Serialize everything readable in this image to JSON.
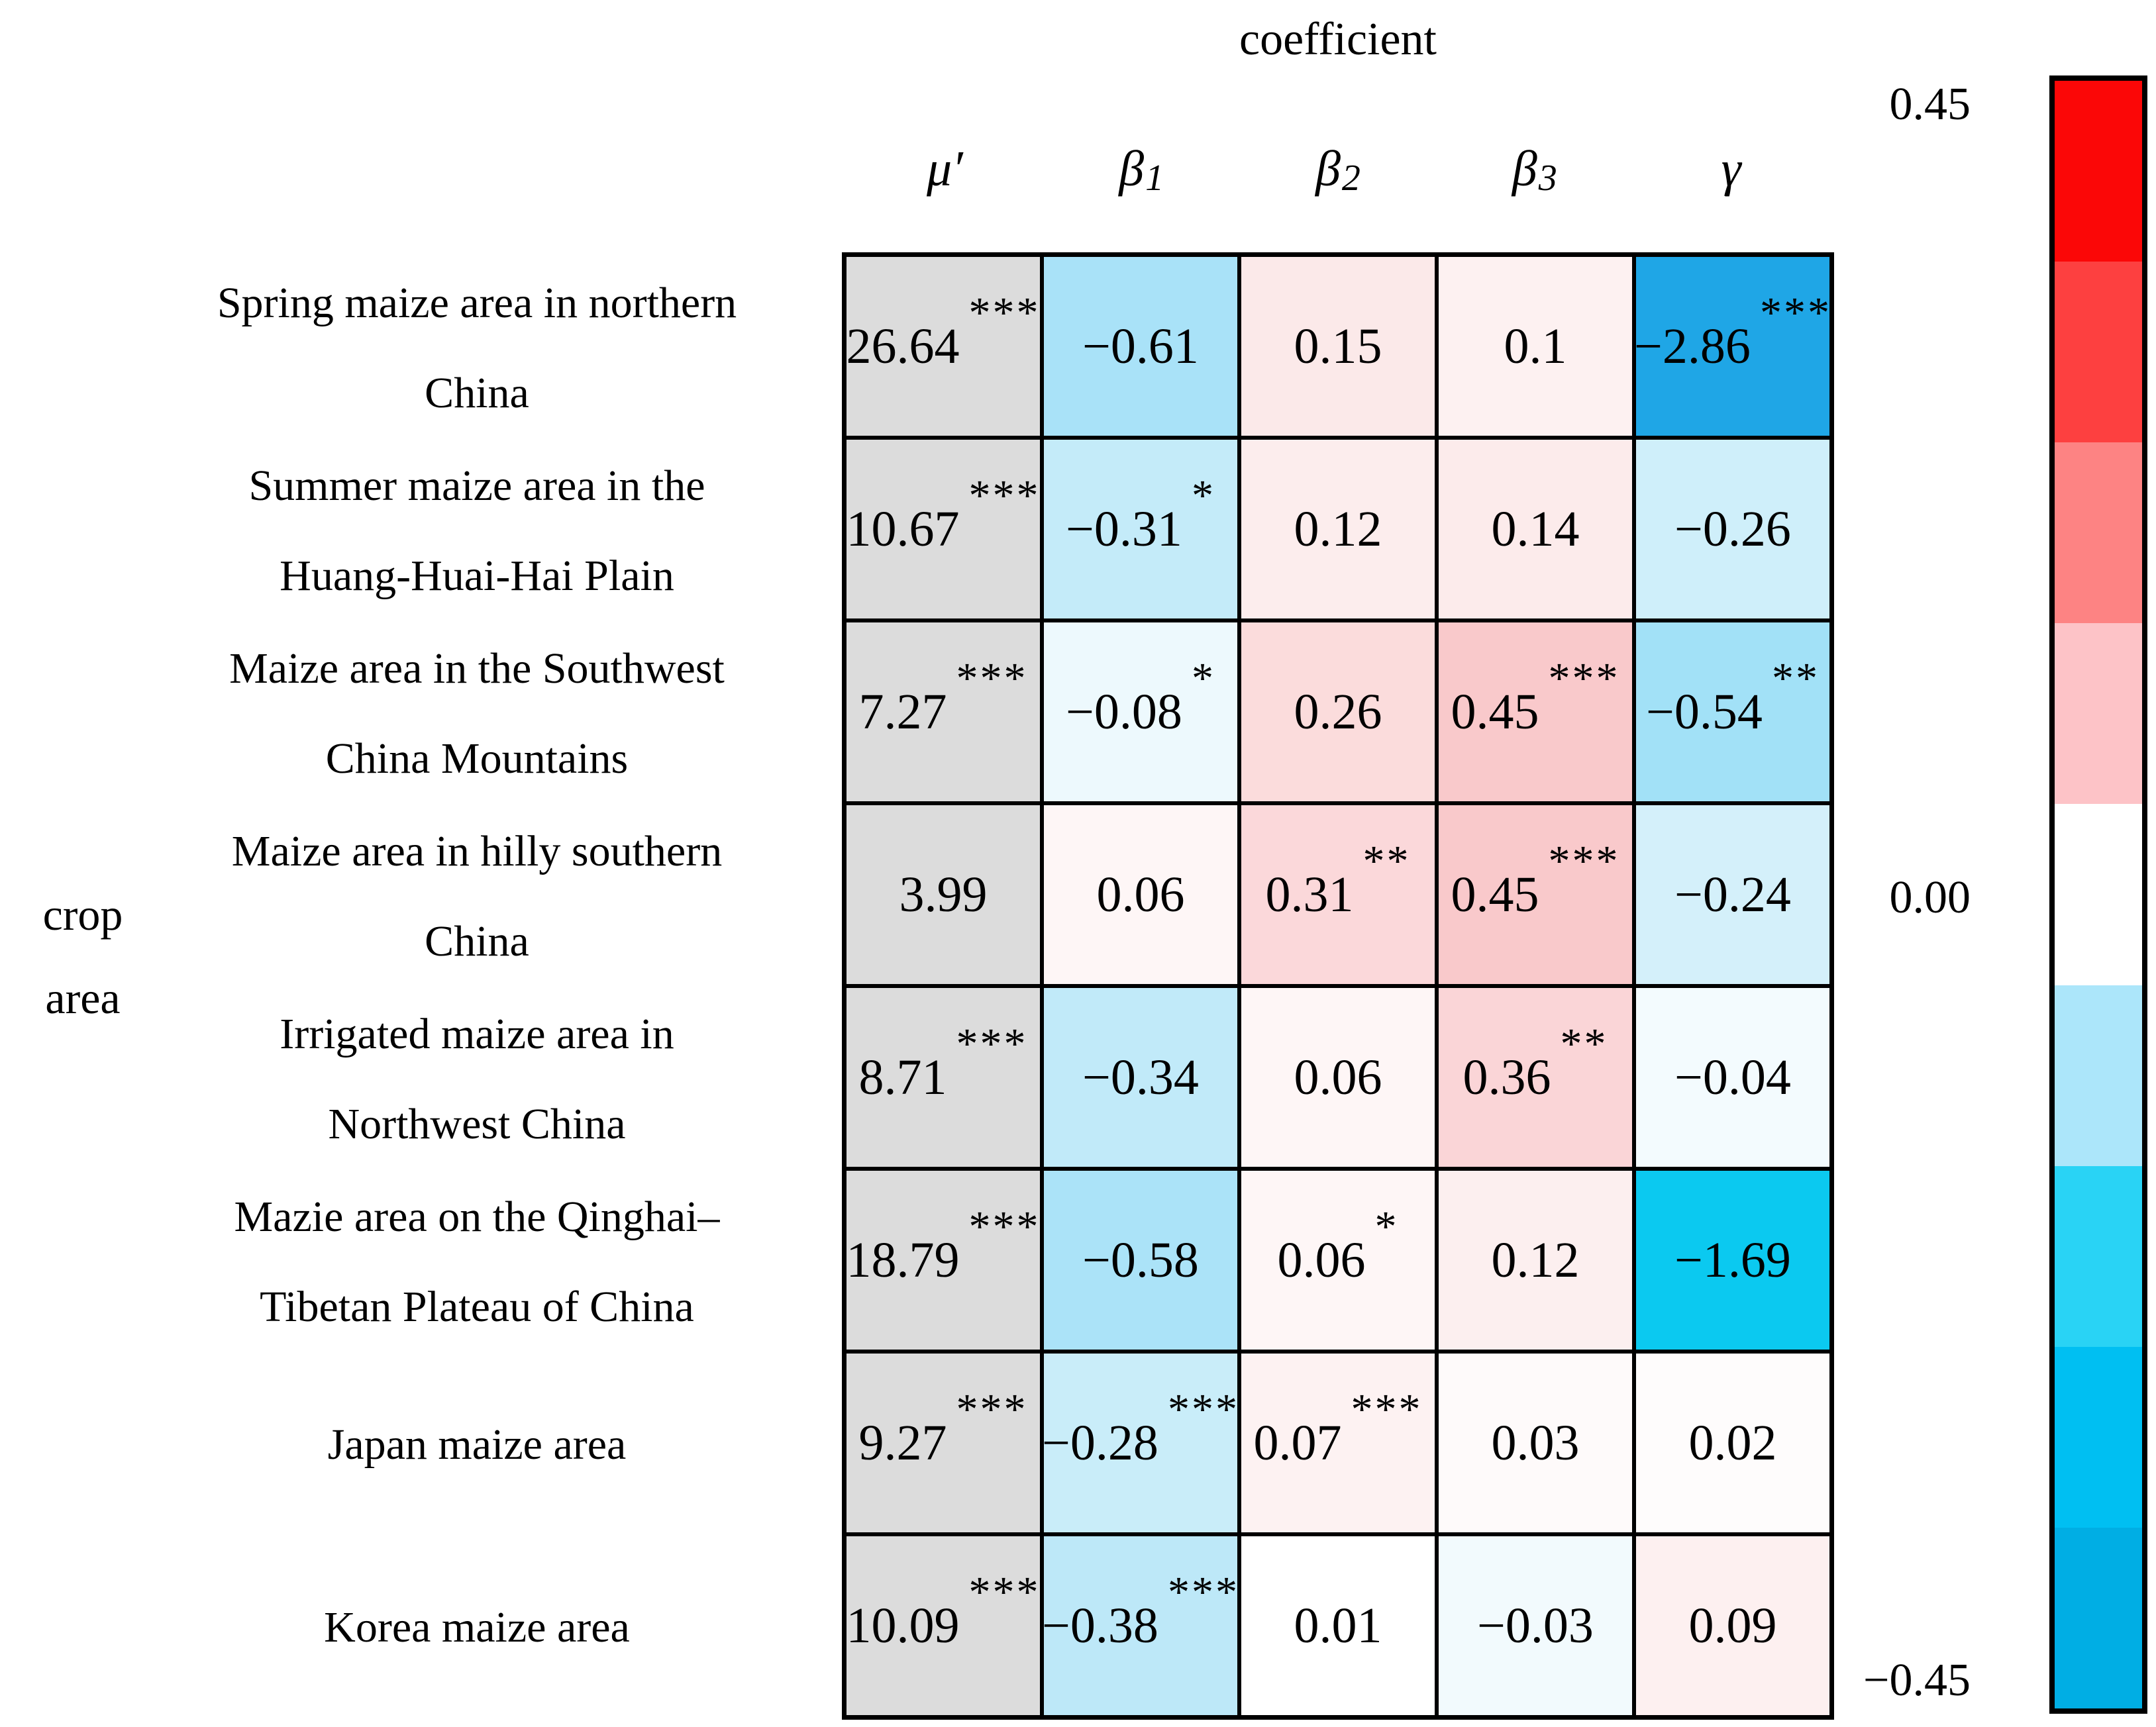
{
  "figure": {
    "background": "#FFFFFF",
    "mu_column_color": "#DCDCDC"
  },
  "axis": {
    "x_title": "coefficient",
    "y_title": "crop area",
    "y_title_lines": [
      "crop",
      "area"
    ]
  },
  "chart_data": {
    "type": "heatmap",
    "title": "coefficient",
    "xlabel": "coefficient",
    "ylabel": "crop area",
    "legend_position": "right-colorbar",
    "grid": "black cell borders",
    "columns": [
      {
        "main": "μ′",
        "sub": ""
      },
      {
        "main": "β",
        "sub": "1"
      },
      {
        "main": "β",
        "sub": "2"
      },
      {
        "main": "β",
        "sub": "3"
      },
      {
        "main": "γ",
        "sub": ""
      }
    ],
    "rows": [
      "Spring maize area in northern China",
      "Summer maize area in the Huang-Huai-Hai Plain",
      "Maize area in the Southwest China Mountains",
      "Maize area in hilly southern China",
      "Irrigated maize area in Northwest China",
      "Mazie area on the Qinghai–Tibetan Plateau of China",
      "Japan maize area",
      "Korea maize area"
    ],
    "row_label_lines": [
      [
        "Spring maize area in northern",
        "China"
      ],
      [
        "Summer maize area in the",
        "Huang-Huai-Hai Plain"
      ],
      [
        "Maize area in the Southwest",
        "China Mountains"
      ],
      [
        "Maize area in hilly southern",
        "China"
      ],
      [
        "Irrigated maize area in",
        "Northwest China"
      ],
      [
        "Mazie area on the Qinghai–",
        "Tibetan Plateau of China"
      ],
      [
        "Japan maize area"
      ],
      [
        "Korea maize area"
      ]
    ],
    "cells": [
      [
        {
          "value": 26.64,
          "label": "26.64",
          "sig": "***",
          "color": "#DCDCDC"
        },
        {
          "value": -0.61,
          "label": "−0.61",
          "sig": "",
          "color": "#A9E2F8"
        },
        {
          "value": 0.15,
          "label": "0.15",
          "sig": "",
          "color": "#FBE9E9"
        },
        {
          "value": 0.1,
          "label": "0.1",
          "sig": "",
          "color": "#FDF1F1"
        },
        {
          "value": -2.86,
          "label": "−2.86",
          "sig": "***",
          "color": "#1FA6E6"
        }
      ],
      [
        {
          "value": 10.67,
          "label": "10.67",
          "sig": "***",
          "color": "#DCDCDC"
        },
        {
          "value": -0.31,
          "label": "−0.31",
          "sig": "*",
          "color": "#C4EBF9"
        },
        {
          "value": 0.12,
          "label": "0.12",
          "sig": "",
          "color": "#FCEDED"
        },
        {
          "value": 0.14,
          "label": "0.14",
          "sig": "",
          "color": "#FCEBEB"
        },
        {
          "value": -0.26,
          "label": "−0.26",
          "sig": "",
          "color": "#CFEFFA"
        }
      ],
      [
        {
          "value": 7.27,
          "label": "7.27",
          "sig": "***",
          "color": "#DCDCDC"
        },
        {
          "value": -0.08,
          "label": "−0.08",
          "sig": "*",
          "color": "#EDF9FD"
        },
        {
          "value": 0.26,
          "label": "0.26",
          "sig": "",
          "color": "#FBDCDC"
        },
        {
          "value": 0.45,
          "label": "0.45",
          "sig": "***",
          "color": "#F9C9CB"
        },
        {
          "value": -0.54,
          "label": "−0.54",
          "sig": "**",
          "color": "#A2E1F7"
        }
      ],
      [
        {
          "value": 3.99,
          "label": "3.99",
          "sig": "",
          "color": "#DCDCDC"
        },
        {
          "value": 0.06,
          "label": "0.06",
          "sig": "",
          "color": "#FEF6F6"
        },
        {
          "value": 0.31,
          "label": "0.31",
          "sig": "**",
          "color": "#FBD8DA"
        },
        {
          "value": 0.45,
          "label": "0.45",
          "sig": "***",
          "color": "#F9C9CB"
        },
        {
          "value": -0.24,
          "label": "−0.24",
          "sig": "",
          "color": "#D4F0FA"
        }
      ],
      [
        {
          "value": 8.71,
          "label": "8.71",
          "sig": "***",
          "color": "#DCDCDC"
        },
        {
          "value": -0.34,
          "label": "−0.34",
          "sig": "",
          "color": "#C1EAF9"
        },
        {
          "value": 0.06,
          "label": "0.06",
          "sig": "",
          "color": "#FEF6F6"
        },
        {
          "value": 0.36,
          "label": "0.36",
          "sig": "**",
          "color": "#FAD5D7"
        },
        {
          "value": -0.04,
          "label": "−0.04",
          "sig": "",
          "color": "#F3FBFE"
        }
      ],
      [
        {
          "value": 18.79,
          "label": "18.79",
          "sig": "***",
          "color": "#DCDCDC"
        },
        {
          "value": -0.58,
          "label": "−0.58",
          "sig": "",
          "color": "#ABE3F8"
        },
        {
          "value": 0.06,
          "label": "0.06",
          "sig": "*",
          "color": "#FEF6F6"
        },
        {
          "value": 0.12,
          "label": "0.12",
          "sig": "",
          "color": "#FCEFEF"
        },
        {
          "value": -1.69,
          "label": "−1.69",
          "sig": "",
          "color": "#0BC9F0"
        }
      ],
      [
        {
          "value": 9.27,
          "label": "9.27",
          "sig": "***",
          "color": "#DCDCDC"
        },
        {
          "value": -0.28,
          "label": "−0.28",
          "sig": "***",
          "color": "#C9EDF9"
        },
        {
          "value": 0.07,
          "label": "0.07",
          "sig": "***",
          "color": "#FDF2F2"
        },
        {
          "value": 0.03,
          "label": "0.03",
          "sig": "",
          "color": "#FEFAFA"
        },
        {
          "value": 0.02,
          "label": "0.02",
          "sig": "",
          "color": "#FEFCFC"
        }
      ],
      [
        {
          "value": 10.09,
          "label": "10.09",
          "sig": "***",
          "color": "#DCDCDC"
        },
        {
          "value": -0.38,
          "label": "−0.38",
          "sig": "***",
          "color": "#BDE8F8"
        },
        {
          "value": 0.01,
          "label": "0.01",
          "sig": "",
          "color": "#FFFFFF"
        },
        {
          "value": -0.03,
          "label": "−0.03",
          "sig": "",
          "color": "#F2FAFD"
        },
        {
          "value": 0.09,
          "label": "0.09",
          "sig": "",
          "color": "#FDF0F0"
        }
      ]
    ],
    "colorbar": {
      "vmax": 0.45,
      "vmin": -0.45,
      "tick_labels": [
        "0.45",
        "0.00",
        "−0.45"
      ],
      "band_colors": [
        "#FB0707",
        "#FD4040",
        "#FD8383",
        "#FDC3C7",
        "#FFFFFF",
        "#ACE6FA",
        "#29D3F5",
        "#00BFF2",
        "#00AEE4"
      ]
    }
  }
}
